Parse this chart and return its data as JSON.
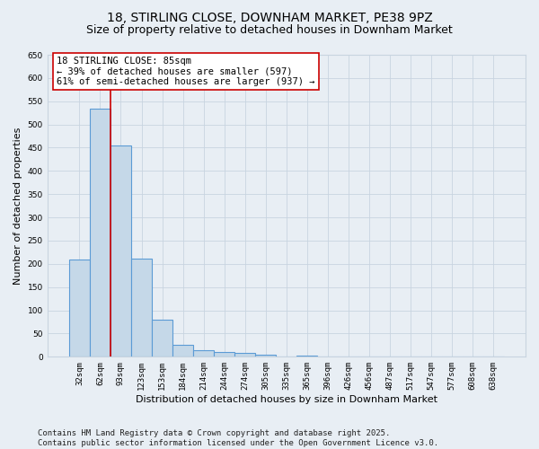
{
  "title1": "18, STIRLING CLOSE, DOWNHAM MARKET, PE38 9PZ",
  "title2": "Size of property relative to detached houses in Downham Market",
  "xlabel": "Distribution of detached houses by size in Downham Market",
  "ylabel": "Number of detached properties",
  "categories": [
    "32sqm",
    "62sqm",
    "93sqm",
    "123sqm",
    "153sqm",
    "184sqm",
    "214sqm",
    "244sqm",
    "274sqm",
    "305sqm",
    "335sqm",
    "365sqm",
    "396sqm",
    "426sqm",
    "456sqm",
    "487sqm",
    "517sqm",
    "547sqm",
    "577sqm",
    "608sqm",
    "638sqm"
  ],
  "values": [
    210,
    535,
    455,
    212,
    80,
    25,
    15,
    10,
    9,
    5,
    0,
    3,
    0,
    0,
    0,
    1,
    0,
    0,
    1,
    0,
    1
  ],
  "bar_color": "#c5d8e8",
  "bar_edge_color": "#5b9bd5",
  "bar_edge_width": 0.8,
  "grid_color": "#c8d4e0",
  "background_color": "#e8eef4",
  "vline_x": 1.5,
  "vline_color": "#cc0000",
  "annotation_text": "18 STIRLING CLOSE: 85sqm\n← 39% of detached houses are smaller (597)\n61% of semi-detached houses are larger (937) →",
  "annotation_box_color": "#ffffff",
  "annotation_box_edge": "#cc0000",
  "ylim": [
    0,
    650
  ],
  "yticks": [
    0,
    50,
    100,
    150,
    200,
    250,
    300,
    350,
    400,
    450,
    500,
    550,
    600,
    650
  ],
  "footer": "Contains HM Land Registry data © Crown copyright and database right 2025.\nContains public sector information licensed under the Open Government Licence v3.0.",
  "title_fontsize": 10,
  "subtitle_fontsize": 9,
  "tick_fontsize": 6.5,
  "label_fontsize": 8,
  "footer_fontsize": 6.5,
  "annot_fontsize": 7.5
}
